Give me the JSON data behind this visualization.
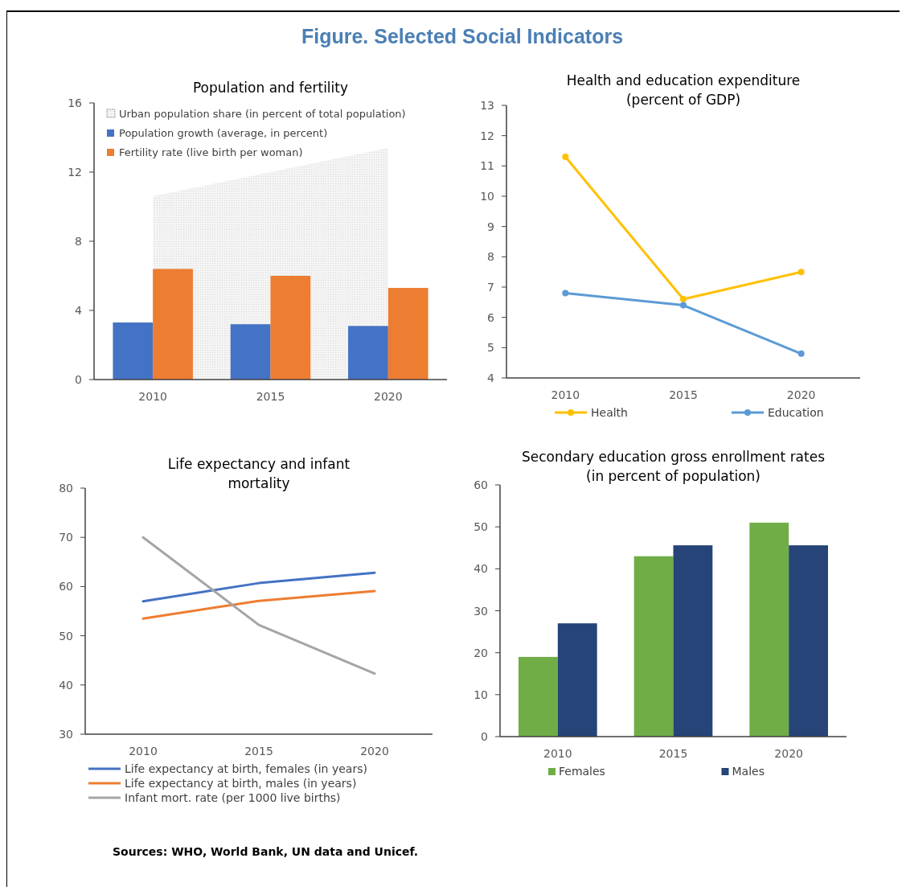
{
  "chart_data": [
    {
      "type": "other",
      "title": "Figure. Selected Social Indicators",
      "annotations": [
        "Sources: WHO, World Bank, UN data and Unicef."
      ]
    },
    {
      "type": "bar",
      "title": "Population and fertility",
      "categories": [
        "2010",
        "2015",
        "2020"
      ],
      "ylim": [
        0,
        16
      ],
      "yticks": [
        0,
        4,
        8,
        12,
        16
      ],
      "legend": "top left",
      "series": [
        {
          "name": "Urban population share (in percent of total population)",
          "type": "area",
          "color": "#d9d9d9",
          "values": [
            10.6,
            12.0,
            13.4
          ]
        },
        {
          "name": "Population growth (average, in percent)",
          "color": "#4472c4",
          "values": [
            3.3,
            3.2,
            3.1
          ]
        },
        {
          "name": "Fertility rate (live birth per woman)",
          "color": "#ed7d31",
          "values": [
            6.4,
            6.0,
            5.3
          ]
        }
      ]
    },
    {
      "type": "line",
      "title": "Health and education expenditure (percent of GDP)",
      "categories": [
        "2010",
        "2015",
        "2020"
      ],
      "ylim": [
        4,
        13
      ],
      "yticks": [
        4,
        5,
        6,
        7,
        8,
        9,
        10,
        11,
        12,
        13
      ],
      "legend": "bottom",
      "marker": "circle",
      "series": [
        {
          "name": "Health",
          "color": "#ffc000",
          "values": [
            11.3,
            6.6,
            7.5
          ]
        },
        {
          "name": "Education",
          "color": "#5b9bd5",
          "values": [
            6.8,
            6.4,
            4.8
          ]
        }
      ]
    },
    {
      "type": "line",
      "title": "Life expectancy and  infant mortality",
      "categories": [
        "2010",
        "2015",
        "2020"
      ],
      "ylim": [
        30,
        80
      ],
      "yticks": [
        30,
        40,
        50,
        60,
        70,
        80
      ],
      "legend": "bottom",
      "series": [
        {
          "name": "Life expectancy at birth, females (in years)",
          "color": "#4472c4",
          "values": [
            57,
            60.7,
            62.8
          ]
        },
        {
          "name": "Life expectancy at birth, males (in years)",
          "color": "#ed7d31",
          "values": [
            53.5,
            57.1,
            59.1
          ]
        },
        {
          "name": "Infant mort. rate (per 1000 live births)",
          "color": "#a5a5a5",
          "values": [
            70,
            52.2,
            42.3
          ]
        }
      ]
    },
    {
      "type": "bar",
      "title": "Secondary education gross enrollment rates (in percent of population)",
      "categories": [
        "2010",
        "2015",
        "2020"
      ],
      "ylim": [
        0,
        60
      ],
      "yticks": [
        0,
        10,
        20,
        30,
        40,
        50,
        60
      ],
      "legend": "bottom",
      "series": [
        {
          "name": "Females",
          "color": "#70ad47",
          "values": [
            19,
            43,
            51
          ]
        },
        {
          "name": "Males",
          "color": "#264478",
          "values": [
            27,
            45.6,
            45.6
          ]
        }
      ]
    }
  ]
}
